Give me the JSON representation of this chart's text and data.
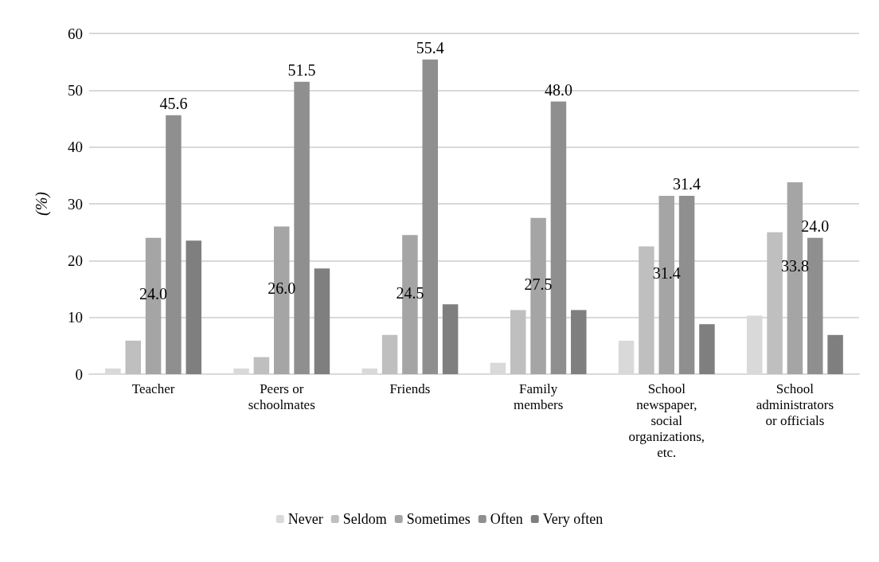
{
  "chart_data": {
    "type": "bar",
    "ylabel": "(%)",
    "categories": [
      "Teacher",
      "Peers or\nschoolmates",
      "Friends",
      "Family\nmembers",
      "School\nnewspaper,\nsocial\norganizations,\netc.",
      "School\nadministrators\nor officials"
    ],
    "series": [
      {
        "name": "Never",
        "color": "#d9d9d9",
        "values": [
          1.0,
          1.0,
          1.0,
          2.0,
          5.9,
          10.3
        ]
      },
      {
        "name": "Seldom",
        "color": "#bfbfbf",
        "values": [
          5.9,
          3.0,
          6.9,
          11.3,
          22.5,
          25.0
        ]
      },
      {
        "name": "Sometimes",
        "color": "#a5a5a5",
        "values": [
          24.0,
          26.0,
          24.5,
          27.5,
          31.4,
          33.8
        ],
        "value_labels": [
          "24.0",
          "26.0",
          "24.5",
          "27.5",
          "31.4",
          "33.8"
        ]
      },
      {
        "name": "Often",
        "color": "#8f8f8f",
        "values": [
          45.6,
          51.5,
          55.4,
          48.0,
          31.4,
          24.0
        ],
        "value_labels": [
          "45.6",
          "51.5",
          "55.4",
          "48.0",
          "31.4",
          "24.0"
        ]
      },
      {
        "name": "Very often",
        "color": "#7f7f7f",
        "values": [
          23.5,
          18.6,
          12.3,
          11.3,
          8.8,
          6.9
        ]
      }
    ],
    "ylim": [
      0,
      60
    ],
    "yticks": [
      0,
      10,
      20,
      30,
      40,
      50,
      60
    ],
    "grid": "y",
    "legend": "bottom"
  }
}
